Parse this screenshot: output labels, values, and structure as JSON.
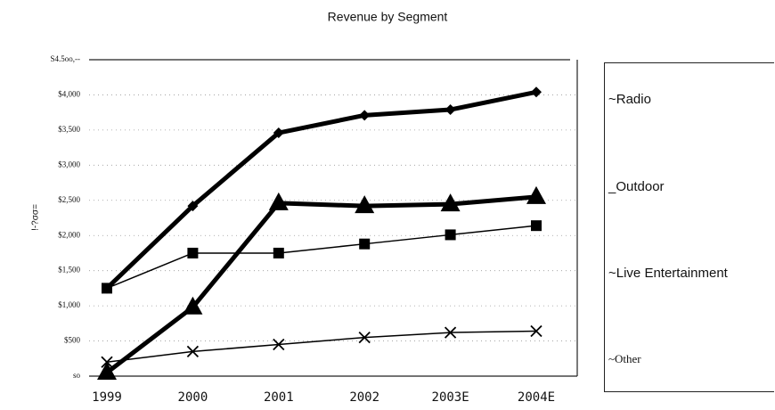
{
  "chart_data": {
    "type": "line",
    "title": "Revenue by Segment",
    "y_label": "!-?σσ=",
    "categories": [
      "1999",
      "2000",
      "2001",
      "2002",
      "2003E",
      "2004E"
    ],
    "series": [
      {
        "name": "~Radio",
        "color": "#000000",
        "marker": "diamond",
        "width": 5,
        "values": [
          1250,
          2420,
          3460,
          3710,
          3790,
          4040
        ]
      },
      {
        "name": "_Outdoor",
        "color": "#000000",
        "marker": "triangle",
        "width": 5,
        "values": [
          50,
          980,
          2460,
          2420,
          2445,
          2550
        ]
      },
      {
        "name": "~Live Entertainment",
        "color": "#000000",
        "marker": "square",
        "width": 1.5,
        "values": [
          1250,
          1750,
          1750,
          1880,
          2010,
          2140
        ]
      },
      {
        "name": "~Other",
        "color": "#000000",
        "marker": "x",
        "width": 1.5,
        "values": [
          200,
          350,
          450,
          550,
          620,
          640
        ]
      }
    ],
    "ylim": [
      0,
      4500
    ],
    "yticks": [
      {
        "value": 0,
        "label": "so"
      },
      {
        "value": 500,
        "label": "$500"
      },
      {
        "value": 1000,
        "label": "$1,000"
      },
      {
        "value": 1500,
        "label": "$1,500"
      },
      {
        "value": 2000,
        "label": "$2,000"
      },
      {
        "value": 2500,
        "label": "$2,500"
      },
      {
        "value": 3000,
        "label": "$3,000"
      },
      {
        "value": 3500,
        "label": "$3,500"
      },
      {
        "value": 4000,
        "label": "$4,000"
      },
      {
        "value": 4500,
        "label": "S4.5oo,--"
      }
    ],
    "grid": true
  }
}
